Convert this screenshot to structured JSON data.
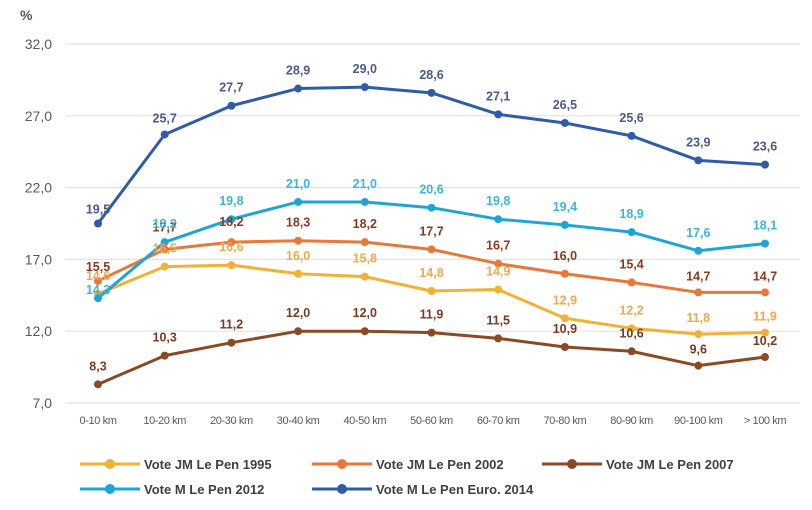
{
  "chart_data": {
    "type": "line",
    "title": "",
    "xlabel": "",
    "ylabel": "%",
    "ylim": [
      7.0,
      32.0
    ],
    "yticks": [
      "7,0",
      "12,0",
      "17,0",
      "22,0",
      "27,0",
      "32,0"
    ],
    "ytick_values": [
      7,
      12,
      17,
      22,
      27,
      32
    ],
    "grid": true,
    "legend_position": "bottom",
    "categories": [
      "0-10 km",
      "10-20 km",
      "20-30 km",
      "30-40 km",
      "40-50 km",
      "50-60 km",
      "60-70 km",
      "70-80 km",
      "80-90 km",
      "90-100 km",
      "> 100 km"
    ],
    "series": [
      {
        "name": "Vote JM Le Pen 1995",
        "color": "#F2B134",
        "label_color": "#F0A84A",
        "values": [
          14.6,
          16.5,
          16.6,
          16.0,
          15.8,
          14.8,
          14.9,
          12.9,
          12.2,
          11.8,
          11.9
        ],
        "labels": [
          "14,6",
          "16,5",
          "16,6",
          "16,0",
          "15,8",
          "14,8",
          "14,9",
          "12,9",
          "12,2",
          "11,8",
          "11,9"
        ]
      },
      {
        "name": "Vote JM Le Pen 2002",
        "color": "#E8783A",
        "label_color": "#8B3A1E",
        "values": [
          15.5,
          17.7,
          18.2,
          18.3,
          18.2,
          17.7,
          16.7,
          16.0,
          15.4,
          14.7,
          14.7
        ],
        "labels": [
          "15,5",
          "17,7",
          "18,2",
          "18,3",
          "18,2",
          "17,7",
          "16,7",
          "16,0",
          "15,4",
          "14,7",
          "14,7"
        ]
      },
      {
        "name": "Vote JM Le Pen 2007",
        "color": "#8B4A24",
        "label_color": "#7A3A20",
        "values": [
          8.3,
          10.3,
          11.2,
          12.0,
          12.0,
          11.9,
          11.5,
          10.9,
          10.6,
          9.6,
          10.2
        ],
        "labels": [
          "8,3",
          "10,3",
          "11,2",
          "12,0",
          "12,0",
          "11,9",
          "11,5",
          "10,9",
          "10,6",
          "9,6",
          "10,2"
        ]
      },
      {
        "name": "Vote M Le Pen 2012",
        "color": "#1EA5D8",
        "label_color": "#3CB4E0",
        "values": [
          14.3,
          18.2,
          19.8,
          21.0,
          21.0,
          20.6,
          19.8,
          19.4,
          18.9,
          17.6,
          18.1
        ],
        "labels": [
          "14,3",
          "18,2",
          "19,8",
          "21,0",
          "21,0",
          "20,6",
          "19,8",
          "19,4",
          "18,9",
          "17,6",
          "18,1"
        ]
      },
      {
        "name": "Vote M Le Pen Euro. 2014",
        "color": "#2E5BAA",
        "label_color": "#4A5A8A",
        "values": [
          19.5,
          25.7,
          27.7,
          28.9,
          29.0,
          28.6,
          27.1,
          26.5,
          25.6,
          23.9,
          23.6
        ],
        "labels": [
          "19,5",
          "25,7",
          "27,7",
          "28,9",
          "29,0",
          "28,6",
          "27,1",
          "26,5",
          "25,6",
          "23,9",
          "23,6"
        ]
      }
    ]
  }
}
